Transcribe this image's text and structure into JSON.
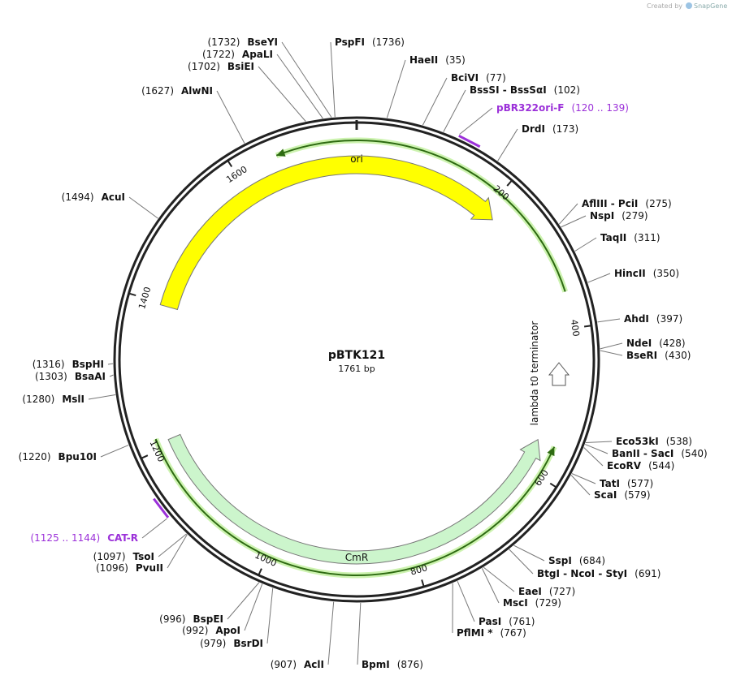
{
  "credit": {
    "prefix": "Created by",
    "brand": "SnapGene"
  },
  "plasmid": {
    "name": "pBTK121",
    "length": "1761 bp"
  },
  "ring_ticks": [
    200,
    400,
    600,
    800,
    1000,
    1200,
    1400,
    1600
  ],
  "features": {
    "ori": "ori",
    "cmr": "CmR",
    "terminator": "lambda t0 terminator"
  },
  "primers": [
    {
      "name": "pBR322ori-F",
      "range": "(120 .. 139)"
    },
    {
      "name": "CAT-R",
      "range": "(1125 .. 1144)"
    }
  ],
  "enzymes": [
    {
      "name": "BseYI",
      "pos": "(1732)"
    },
    {
      "name": "PspFI",
      "pos": "(1736)"
    },
    {
      "name": "ApaLI",
      "pos": "(1722)"
    },
    {
      "name": "BsiEI",
      "pos": "(1702)"
    },
    {
      "name": "HaeII",
      "pos": "(35)"
    },
    {
      "name": "BciVI",
      "pos": "(77)"
    },
    {
      "name": "BssSI - BssSαI",
      "pos": "(102)"
    },
    {
      "name": "AlwNI",
      "pos": "(1627)"
    },
    {
      "name": "DrdI",
      "pos": "(173)"
    },
    {
      "name": "AflIII - PciI",
      "pos": "(275)"
    },
    {
      "name": "NspI",
      "pos": "(279)"
    },
    {
      "name": "TaqII",
      "pos": "(311)"
    },
    {
      "name": "HincII",
      "pos": "(350)"
    },
    {
      "name": "AhdI",
      "pos": "(397)"
    },
    {
      "name": "NdeI",
      "pos": "(428)"
    },
    {
      "name": "BseRI",
      "pos": "(430)"
    },
    {
      "name": "Eco53kI",
      "pos": "(538)"
    },
    {
      "name": "BanII - SacI",
      "pos": "(540)"
    },
    {
      "name": "EcoRV",
      "pos": "(544)"
    },
    {
      "name": "TatI",
      "pos": "(577)"
    },
    {
      "name": "ScaI",
      "pos": "(579)"
    },
    {
      "name": "SspI",
      "pos": "(684)"
    },
    {
      "name": "BtgI - NcoI - StyI",
      "pos": "(691)"
    },
    {
      "name": "EaeI",
      "pos": "(727)"
    },
    {
      "name": "MscI",
      "pos": "(729)"
    },
    {
      "name": "PasI",
      "pos": "(761)"
    },
    {
      "name": "PflMI *",
      "pos": "(767)"
    },
    {
      "name": "BpmI",
      "pos": "(876)"
    },
    {
      "name": "AcuI",
      "pos": "(1494)"
    },
    {
      "name": "BspHI",
      "pos": "(1316)"
    },
    {
      "name": "BsaAI",
      "pos": "(1303)"
    },
    {
      "name": "MslI",
      "pos": "(1280)"
    },
    {
      "name": "Bpu10I",
      "pos": "(1220)"
    },
    {
      "name": "TsoI",
      "pos": "(1097)"
    },
    {
      "name": "PvuII",
      "pos": "(1096)"
    },
    {
      "name": "BspEI",
      "pos": "(996)"
    },
    {
      "name": "ApoI",
      "pos": "(992)"
    },
    {
      "name": "BsrDI",
      "pos": "(979)"
    },
    {
      "name": "AclI",
      "pos": "(907)"
    }
  ]
}
